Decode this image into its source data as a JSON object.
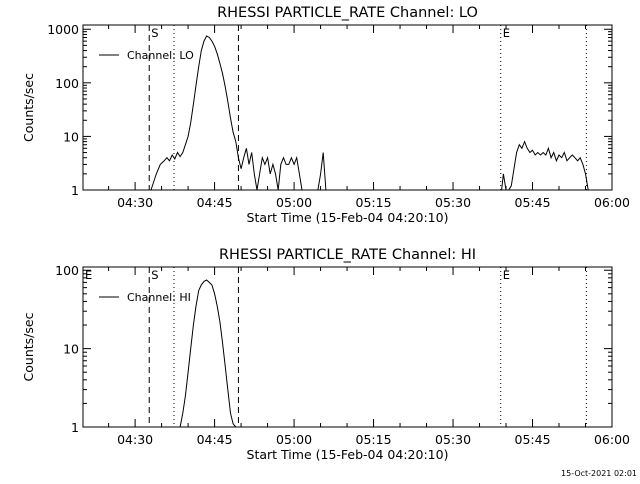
{
  "footer": {
    "timestamp": "15-Oct-2021 02:01"
  },
  "chart_data": [
    {
      "type": "line",
      "title": "RHESSI PARTICLE_RATE Channel: LO",
      "xlabel": "Start Time (15-Feb-04 04:20:10)",
      "ylabel": "Counts/sec",
      "yscale": "log",
      "xlim": [
        "04:20:10",
        "06:00:00"
      ],
      "ylim": [
        1,
        1200
      ],
      "x_ticks": [
        "04:30",
        "04:45",
        "05:00",
        "05:15",
        "05:30",
        "05:45",
        "06:00"
      ],
      "y_ticks": [
        "1",
        "10",
        "100",
        "1000"
      ],
      "grid": false,
      "legend": {
        "position": "top-left",
        "entries": [
          "Channel: LO"
        ]
      },
      "series": [
        {
          "name": "Channel: LO",
          "x": [
            "04:33:00",
            "04:34:00",
            "04:34:45",
            "04:35:30",
            "04:36:00",
            "04:36:30",
            "04:37:00",
            "04:37:30",
            "04:38:00",
            "04:38:30",
            "04:39:00",
            "04:39:30",
            "04:40:00",
            "04:40:30",
            "04:41:00",
            "04:41:30",
            "04:42:00",
            "04:42:30",
            "04:43:00",
            "04:43:30",
            "04:44:00",
            "04:44:30",
            "04:45:00",
            "04:45:30",
            "04:46:00",
            "04:46:30",
            "04:47:00",
            "04:47:30",
            "04:48:00",
            "04:48:30",
            "04:49:00",
            "04:49:30",
            "04:50:00",
            "04:50:30",
            "04:51:00",
            "04:51:30",
            "04:52:00",
            "04:52:30",
            "04:53:00",
            "04:53:30",
            "04:54:00",
            "04:54:30",
            "04:55:00",
            "04:55:30",
            "04:56:00",
            "04:56:30",
            "04:57:00",
            "04:57:30",
            "04:58:00",
            "04:58:30",
            "04:59:00",
            "04:59:30",
            "05:00:00",
            "05:00:30",
            "05:01:00",
            "05:01:30",
            "05:02:00",
            "05:02:30",
            "05:03:00",
            "05:03:30",
            "05:04:00",
            "05:04:30",
            "05:05:00",
            "05:05:30",
            "05:06:00"
          ],
          "y": [
            1,
            2,
            3,
            3.5,
            4,
            3.5,
            4.5,
            3.8,
            5,
            4.2,
            5,
            7,
            10,
            18,
            40,
            90,
            200,
            400,
            600,
            750,
            700,
            600,
            480,
            350,
            230,
            150,
            85,
            45,
            22,
            12,
            8,
            4,
            2.5,
            4,
            6,
            3,
            5,
            2,
            1,
            2,
            4,
            3,
            4,
            2,
            3,
            2,
            1,
            3,
            4,
            3,
            3,
            4,
            3,
            4,
            2,
            1,
            1,
            1,
            1,
            1,
            1,
            1,
            2,
            5,
            1
          ]
        },
        {
          "name": "",
          "x": [
            "05:39:10",
            "05:39:30",
            "05:40:00",
            "05:40:30",
            "05:41:00",
            "05:41:30",
            "05:42:00",
            "05:42:30",
            "05:43:00",
            "05:43:30",
            "05:44:00",
            "05:44:30",
            "05:45:00",
            "05:45:30",
            "05:46:00",
            "05:46:30",
            "05:47:00",
            "05:47:30",
            "05:48:00",
            "05:48:30",
            "05:49:00",
            "05:49:30",
            "05:50:00",
            "05:50:30",
            "05:51:00",
            "05:51:30",
            "05:52:00",
            "05:52:30",
            "05:53:00",
            "05:53:30",
            "05:54:00",
            "05:54:30",
            "05:55:00",
            "05:55:30"
          ],
          "y": [
            1,
            2,
            1,
            1,
            1.2,
            2.5,
            5,
            7,
            6,
            8,
            6,
            5,
            5.5,
            4.5,
            5,
            4.5,
            5,
            4.5,
            6,
            4,
            5,
            3.5,
            4.5,
            4,
            5,
            3.5,
            4,
            4.5,
            4,
            3.5,
            4,
            3,
            2,
            1
          ]
        }
      ],
      "annotations": [
        {
          "label": "S",
          "x": "04:32:40"
        },
        {
          "label": "",
          "x": "04:37:20"
        },
        {
          "label": "",
          "x": "04:49:30"
        },
        {
          "label": "E",
          "x": "05:39:00"
        },
        {
          "label": "",
          "x": "05:55:10"
        }
      ]
    },
    {
      "type": "line",
      "title": "RHESSI PARTICLE_RATE Channel: HI",
      "xlabel": "Start Time (15-Feb-04 04:20:10)",
      "ylabel": "Counts/sec",
      "yscale": "log",
      "xlim": [
        "04:20:10",
        "06:00:00"
      ],
      "ylim": [
        1,
        110
      ],
      "x_ticks": [
        "04:30",
        "04:45",
        "05:00",
        "05:15",
        "05:30",
        "05:45",
        "06:00"
      ],
      "y_ticks": [
        "1",
        "10",
        "100"
      ],
      "grid": false,
      "legend": {
        "position": "top-left",
        "entries": [
          "Channel: HI"
        ]
      },
      "series": [
        {
          "name": "Channel: HI",
          "x": [
            "04:38:30",
            "04:39:00",
            "04:39:30",
            "04:40:00",
            "04:40:30",
            "04:41:00",
            "04:41:30",
            "04:42:00",
            "04:42:30",
            "04:43:00",
            "04:43:30",
            "04:44:00",
            "04:44:30",
            "04:45:00",
            "04:45:30",
            "04:46:00",
            "04:46:30",
            "04:47:00",
            "04:47:30",
            "04:48:00",
            "04:48:30",
            "04:49:00"
          ],
          "y": [
            1,
            1.5,
            2.5,
            5,
            10,
            20,
            35,
            55,
            65,
            72,
            75,
            70,
            65,
            50,
            35,
            22,
            12,
            6,
            3,
            1.5,
            1.1,
            1
          ]
        }
      ],
      "annotations": [
        {
          "label": "E",
          "x": "04:20:10"
        },
        {
          "label": "S",
          "x": "04:32:40"
        },
        {
          "label": "",
          "x": "04:37:20"
        },
        {
          "label": "",
          "x": "04:49:30"
        },
        {
          "label": "E",
          "x": "05:39:00"
        },
        {
          "label": "",
          "x": "05:55:10"
        }
      ]
    }
  ]
}
